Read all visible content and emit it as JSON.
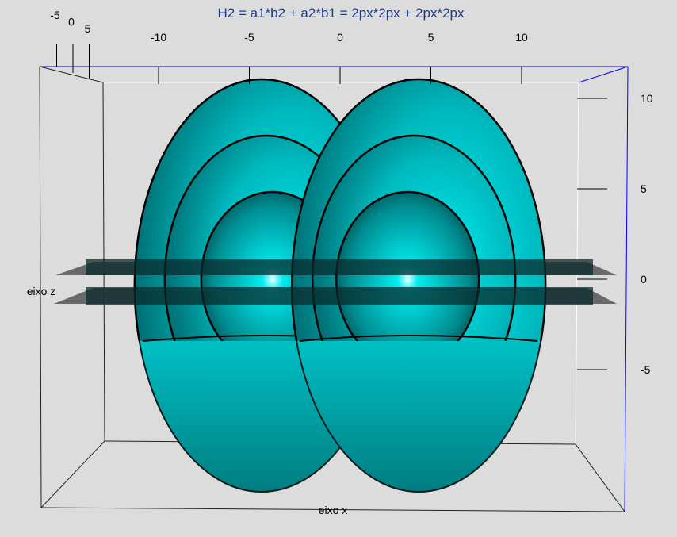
{
  "chart_data": {
    "type": "3d-surface",
    "title": "H2 = a1*b2 + a2*b1 = 2px*2px + 2px*2px",
    "xlabel": "eixo x",
    "zlabel": "eixo z",
    "x_ticks": [
      "-10",
      "-5",
      "0",
      "5",
      "10"
    ],
    "x_tick_values": [
      -10,
      -5,
      0,
      5,
      10
    ],
    "y_ticks": [
      "-5",
      "0",
      "5"
    ],
    "y_tick_values": [
      -5,
      0,
      5
    ],
    "z_ticks": [
      "10",
      "5",
      "0",
      "-5"
    ],
    "z_tick_values": [
      10,
      5,
      0,
      -5
    ],
    "lobe_centers_x": [
      -3.5,
      3.5
    ],
    "shell_count": 3,
    "surface_color": "#00e5e8",
    "plane_color": "#555555",
    "box_color": "#0000ff",
    "title_color": "#1a3a8c",
    "grid": false
  }
}
